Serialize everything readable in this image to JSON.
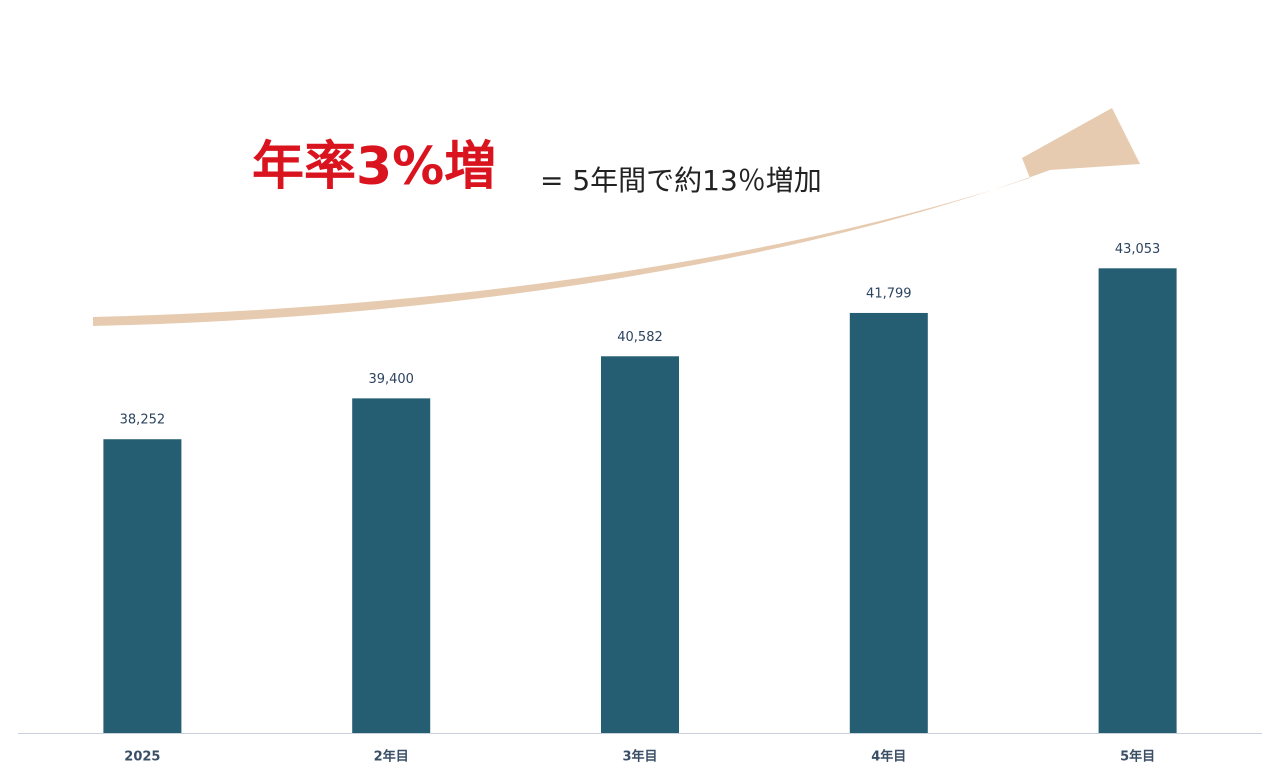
{
  "chart_data": {
    "type": "bar",
    "annotations": [
      "年率3%増",
      "= 5年間で約13％増加"
    ],
    "categories": [
      "2025",
      "2年目",
      "3年目",
      "4年目",
      "5年目"
    ],
    "values": [
      38252,
      39400,
      40582,
      41799,
      43053
    ],
    "value_labels": [
      "38,252",
      "39,400",
      "40,582",
      "41,799",
      "43,053"
    ],
    "color": "#255e73",
    "ylim": [
      30000,
      45000
    ]
  }
}
